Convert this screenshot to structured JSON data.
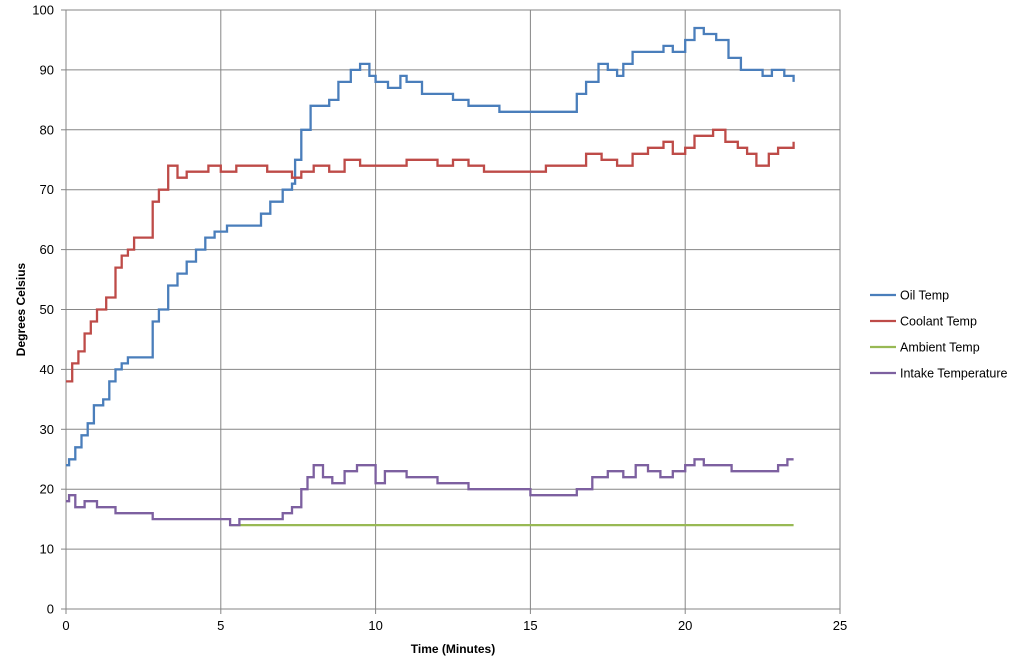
{
  "chart_data": {
    "type": "line",
    "xlabel": "Time (Minutes)",
    "ylabel": "Degrees Celsius",
    "xlim": [
      0,
      25
    ],
    "ylim": [
      0,
      100
    ],
    "xticks": [
      0,
      5,
      10,
      15,
      20,
      25
    ],
    "yticks": [
      0,
      10,
      20,
      30,
      40,
      50,
      60,
      70,
      80,
      90,
      100
    ],
    "grid": true,
    "legend_position": "right",
    "series": [
      {
        "name": "Oil Temp",
        "color": "#4a7ebb",
        "points": [
          [
            0,
            24
          ],
          [
            0.1,
            25
          ],
          [
            0.3,
            27
          ],
          [
            0.5,
            29
          ],
          [
            0.7,
            31
          ],
          [
            0.9,
            34
          ],
          [
            1.2,
            35
          ],
          [
            1.4,
            38
          ],
          [
            1.6,
            40
          ],
          [
            1.8,
            41
          ],
          [
            2.0,
            42
          ],
          [
            2.3,
            42
          ],
          [
            2.8,
            42
          ],
          [
            2.8,
            48
          ],
          [
            3.0,
            50
          ],
          [
            3.3,
            54
          ],
          [
            3.6,
            56
          ],
          [
            3.9,
            58
          ],
          [
            4.2,
            60
          ],
          [
            4.5,
            62
          ],
          [
            4.8,
            63
          ],
          [
            5.2,
            64
          ],
          [
            5.6,
            64
          ],
          [
            6.0,
            64
          ],
          [
            6.3,
            66
          ],
          [
            6.6,
            68
          ],
          [
            7.0,
            70
          ],
          [
            7.3,
            71
          ],
          [
            7.4,
            75
          ],
          [
            7.6,
            80
          ],
          [
            7.9,
            84
          ],
          [
            8.2,
            84
          ],
          [
            8.5,
            85
          ],
          [
            8.8,
            88
          ],
          [
            9.2,
            90
          ],
          [
            9.5,
            91
          ],
          [
            9.8,
            89
          ],
          [
            10.0,
            88
          ],
          [
            10.4,
            87
          ],
          [
            10.8,
            89
          ],
          [
            11.0,
            88
          ],
          [
            11.5,
            86
          ],
          [
            12.0,
            86
          ],
          [
            12.5,
            85
          ],
          [
            13.0,
            84
          ],
          [
            13.5,
            84
          ],
          [
            14.0,
            83
          ],
          [
            14.5,
            83
          ],
          [
            15.0,
            83
          ],
          [
            15.5,
            83
          ],
          [
            16.2,
            83
          ],
          [
            16.5,
            86
          ],
          [
            16.8,
            88
          ],
          [
            17.2,
            91
          ],
          [
            17.5,
            90
          ],
          [
            17.8,
            89
          ],
          [
            18.0,
            91
          ],
          [
            18.3,
            93
          ],
          [
            19.0,
            93
          ],
          [
            19.3,
            94
          ],
          [
            19.6,
            93
          ],
          [
            20.0,
            95
          ],
          [
            20.3,
            97
          ],
          [
            20.6,
            96
          ],
          [
            21.0,
            95
          ],
          [
            21.4,
            92
          ],
          [
            21.8,
            90
          ],
          [
            22.2,
            90
          ],
          [
            22.5,
            89
          ],
          [
            22.8,
            90
          ],
          [
            23.2,
            89
          ],
          [
            23.5,
            88
          ]
        ]
      },
      {
        "name": "Coolant Temp",
        "color": "#be4b48",
        "points": [
          [
            0,
            38
          ],
          [
            0.2,
            41
          ],
          [
            0.4,
            43
          ],
          [
            0.6,
            46
          ],
          [
            0.8,
            48
          ],
          [
            1.0,
            50
          ],
          [
            1.3,
            52
          ],
          [
            1.6,
            57
          ],
          [
            1.8,
            59
          ],
          [
            2.0,
            60
          ],
          [
            2.2,
            62
          ],
          [
            2.8,
            62
          ],
          [
            2.8,
            68
          ],
          [
            3.0,
            70
          ],
          [
            3.3,
            74
          ],
          [
            3.6,
            72
          ],
          [
            3.9,
            73
          ],
          [
            4.2,
            73
          ],
          [
            4.6,
            74
          ],
          [
            5.0,
            73
          ],
          [
            5.5,
            74
          ],
          [
            6.0,
            74
          ],
          [
            6.5,
            73
          ],
          [
            7.0,
            73
          ],
          [
            7.3,
            72
          ],
          [
            7.6,
            73
          ],
          [
            8.0,
            74
          ],
          [
            8.5,
            73
          ],
          [
            9.0,
            75
          ],
          [
            9.5,
            74
          ],
          [
            10.0,
            74
          ],
          [
            10.5,
            74
          ],
          [
            11.0,
            75
          ],
          [
            11.5,
            75
          ],
          [
            12.0,
            74
          ],
          [
            12.5,
            75
          ],
          [
            13.0,
            74
          ],
          [
            13.5,
            73
          ],
          [
            14.0,
            73
          ],
          [
            14.5,
            73
          ],
          [
            15.0,
            73
          ],
          [
            15.5,
            74
          ],
          [
            16.0,
            74
          ],
          [
            16.5,
            74
          ],
          [
            16.8,
            76
          ],
          [
            17.3,
            75
          ],
          [
            17.8,
            74
          ],
          [
            18.3,
            76
          ],
          [
            18.8,
            77
          ],
          [
            19.3,
            78
          ],
          [
            19.6,
            76
          ],
          [
            20.0,
            77
          ],
          [
            20.3,
            79
          ],
          [
            20.6,
            79
          ],
          [
            20.9,
            80
          ],
          [
            21.3,
            78
          ],
          [
            21.7,
            77
          ],
          [
            22.0,
            76
          ],
          [
            22.3,
            74
          ],
          [
            22.7,
            76
          ],
          [
            23.0,
            77
          ],
          [
            23.5,
            78
          ]
        ]
      },
      {
        "name": "Ambient Temp",
        "color": "#98b954",
        "points": [
          [
            5.3,
            14
          ],
          [
            10,
            14
          ],
          [
            15,
            14
          ],
          [
            20,
            14
          ],
          [
            23.5,
            14
          ]
        ]
      },
      {
        "name": "Intake Temperature",
        "color": "#7d60a0",
        "points": [
          [
            0,
            18
          ],
          [
            0.1,
            19
          ],
          [
            0.3,
            17
          ],
          [
            0.6,
            18
          ],
          [
            1.0,
            17
          ],
          [
            1.3,
            17
          ],
          [
            1.6,
            16
          ],
          [
            2.0,
            16
          ],
          [
            2.5,
            16
          ],
          [
            2.8,
            15
          ],
          [
            3.5,
            15
          ],
          [
            4.0,
            15
          ],
          [
            4.5,
            15
          ],
          [
            5.0,
            15
          ],
          [
            5.3,
            14
          ],
          [
            5.6,
            15
          ],
          [
            6.0,
            15
          ],
          [
            6.5,
            15
          ],
          [
            7.0,
            16
          ],
          [
            7.3,
            17
          ],
          [
            7.6,
            20
          ],
          [
            7.8,
            22
          ],
          [
            8.0,
            24
          ],
          [
            8.3,
            22
          ],
          [
            8.6,
            21
          ],
          [
            9.0,
            23
          ],
          [
            9.4,
            24
          ],
          [
            9.7,
            24
          ],
          [
            10.0,
            21
          ],
          [
            10.3,
            23
          ],
          [
            10.6,
            23
          ],
          [
            11.0,
            22
          ],
          [
            11.5,
            22
          ],
          [
            12.0,
            21
          ],
          [
            12.5,
            21
          ],
          [
            13.0,
            20
          ],
          [
            13.5,
            20
          ],
          [
            14.0,
            20
          ],
          [
            14.5,
            20
          ],
          [
            15.0,
            19
          ],
          [
            15.5,
            19
          ],
          [
            16.0,
            19
          ],
          [
            16.5,
            20
          ],
          [
            17.0,
            22
          ],
          [
            17.5,
            23
          ],
          [
            18.0,
            22
          ],
          [
            18.4,
            24
          ],
          [
            18.8,
            23
          ],
          [
            19.2,
            22
          ],
          [
            19.6,
            23
          ],
          [
            20.0,
            24
          ],
          [
            20.3,
            25
          ],
          [
            20.6,
            24
          ],
          [
            21.0,
            24
          ],
          [
            21.5,
            23
          ],
          [
            22.0,
            23
          ],
          [
            22.5,
            23
          ],
          [
            23.0,
            24
          ],
          [
            23.3,
            25
          ],
          [
            23.5,
            25
          ]
        ]
      }
    ]
  }
}
